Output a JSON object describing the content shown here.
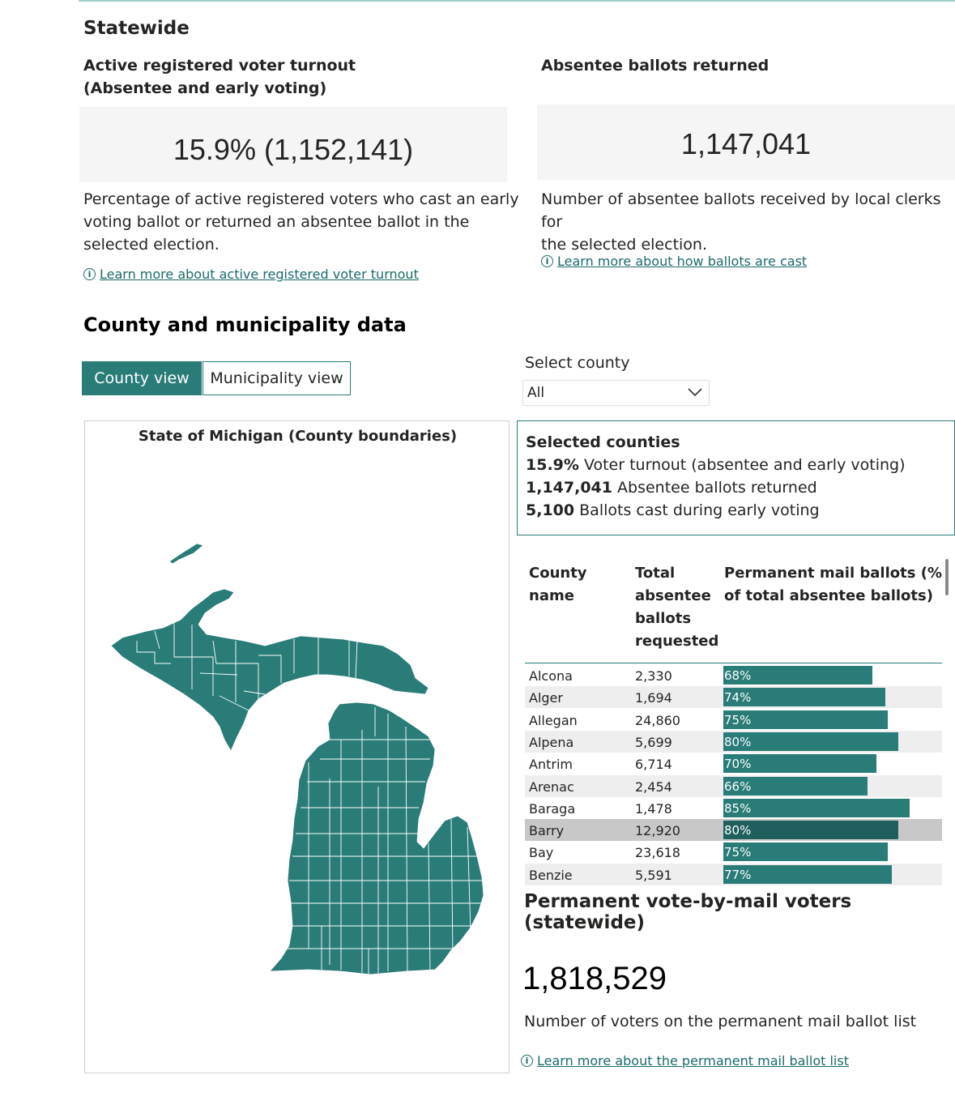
{
  "statewide": {
    "heading": "Statewide",
    "turnout": {
      "title_line1": "Active registered voter turnout",
      "title_line2": "(Absentee and early voting)",
      "value": "15.9% (1,152,141)",
      "desc_line1": "Percentage of active registered voters who cast an early",
      "desc_line2": "voting ballot or returned an absentee ballot in the",
      "desc_line3": "selected election.",
      "link": "Learn more about active registered voter turnout",
      "link_icon": "info-icon"
    },
    "absentee": {
      "title": "Absentee ballots returned",
      "value": "1,147,041",
      "desc_line1": "Number of absentee ballots received by local clerks for",
      "desc_line2": "the selected election.",
      "link": "Learn more about how ballots are cast",
      "link_icon": "info-icon"
    }
  },
  "county_section": {
    "heading": "County and municipality data",
    "tabs": [
      {
        "label": "County view",
        "active": true
      },
      {
        "label": "Municipality view",
        "active": false
      }
    ],
    "select": {
      "label": "Select county",
      "value": "All",
      "icon": "chevron-down-icon"
    },
    "map": {
      "title": "State of Michigan (County boundaries)",
      "fill": "#297c78"
    },
    "selected": {
      "title": "Selected counties",
      "lines": [
        {
          "value": "15.9%",
          "label": " Voter turnout (absentee and early voting)"
        },
        {
          "value": "1,147,041",
          "label": " Absentee ballots returned"
        },
        {
          "value": "5,100",
          "label": " Ballots cast during early voting"
        }
      ]
    },
    "table": {
      "headers": {
        "county": [
          "County",
          "name"
        ],
        "total": [
          "Total",
          "absentee",
          "ballots",
          "requested"
        ],
        "perm": [
          "Permanent mail ballots (%",
          "of total absentee ballots)"
        ]
      },
      "rows": [
        {
          "county": "Alcona",
          "total": "2,330",
          "pct": "68%",
          "fraction": 0.68
        },
        {
          "county": "Alger",
          "total": "1,694",
          "pct": "74%",
          "fraction": 0.74
        },
        {
          "county": "Allegan",
          "total": "24,860",
          "pct": "75%",
          "fraction": 0.75
        },
        {
          "county": "Alpena",
          "total": "5,699",
          "pct": "80%",
          "fraction": 0.8
        },
        {
          "county": "Antrim",
          "total": "6,714",
          "pct": "70%",
          "fraction": 0.7
        },
        {
          "county": "Arenac",
          "total": "2,454",
          "pct": "66%",
          "fraction": 0.66
        },
        {
          "county": "Baraga",
          "total": "1,478",
          "pct": "85%",
          "fraction": 0.85
        },
        {
          "county": "Barry",
          "total": "12,920",
          "pct": "80%",
          "fraction": 0.8,
          "highlighted": true
        },
        {
          "county": "Bay",
          "total": "23,618",
          "pct": "75%",
          "fraction": 0.75
        },
        {
          "county": "Benzie",
          "total": "5,591",
          "pct": "77%",
          "fraction": 0.77
        }
      ]
    },
    "permanent": {
      "heading": "Permanent vote-by-mail voters (statewide)",
      "value": "1,818,529",
      "desc": "Number of voters on the permanent mail ballot list",
      "link": "Learn more about the permanent mail ballot list",
      "link_icon": "info-icon"
    }
  },
  "colors": {
    "accent": "#297c78",
    "highlight_bar": "#1f5f5c",
    "row_stripe": "#eeeeee",
    "highlight_row": "#c8c8c8"
  }
}
